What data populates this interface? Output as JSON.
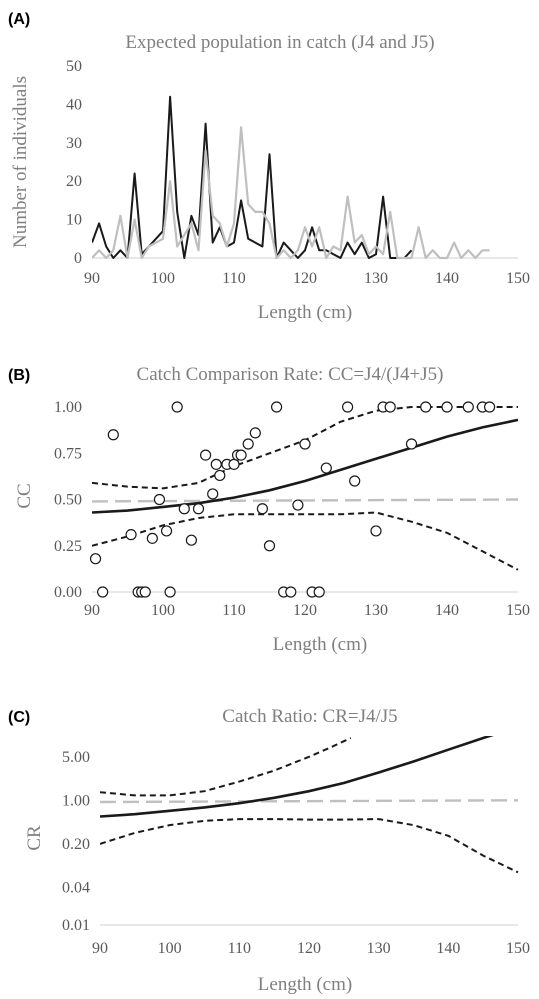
{
  "chart_data": [
    {
      "panel": "(A)",
      "type": "line",
      "title": "Expected population in catch (J4 and J5)",
      "xlabel": "Length (cm)",
      "ylabel": "Number of individuals",
      "xlim": [
        90,
        150
      ],
      "ylim": [
        0,
        50
      ],
      "x_ticks": [
        "90",
        "100",
        "110",
        "120",
        "130",
        "140",
        "150"
      ],
      "y_ticks": [
        "0",
        "10",
        "20",
        "30",
        "40",
        "50"
      ],
      "grid": false,
      "series": [
        {
          "color": "#1a1a1a",
          "x": [
            90,
            91,
            92,
            93,
            94,
            95,
            96,
            97,
            98,
            99,
            100,
            101,
            102,
            103,
            104,
            105,
            106,
            107,
            108,
            109,
            110,
            111,
            112,
            113,
            114,
            115,
            116,
            117,
            118,
            119,
            120,
            121,
            122,
            123,
            124,
            125,
            126,
            127,
            128,
            129,
            130,
            131,
            132,
            133,
            134,
            135
          ],
          "y": [
            4,
            9,
            3,
            0,
            2,
            0,
            22,
            1,
            3,
            5,
            7,
            42,
            12,
            0,
            11,
            6,
            35,
            4,
            8,
            3,
            4,
            15,
            5,
            4,
            3,
            27,
            0,
            4,
            2,
            0,
            2,
            8,
            2,
            2,
            1,
            0,
            4,
            1,
            4,
            0,
            1,
            16,
            0,
            0,
            0,
            2
          ]
        },
        {
          "color": "#bfbfbf",
          "x": [
            90,
            91,
            92,
            93,
            94,
            95,
            96,
            97,
            98,
            99,
            100,
            101,
            102,
            103,
            104,
            105,
            106,
            107,
            108,
            109,
            110,
            111,
            112,
            113,
            114,
            115,
            116,
            117,
            118,
            119,
            120,
            121,
            122,
            123,
            124,
            125,
            126,
            127,
            128,
            129,
            130,
            131,
            132,
            133,
            134,
            135,
            136,
            137,
            138,
            139,
            140,
            141,
            142,
            143,
            144,
            145,
            146
          ],
          "y": [
            0,
            2,
            0,
            2,
            11,
            0,
            10,
            0,
            3,
            4,
            5,
            20,
            3,
            6,
            9,
            2,
            28,
            11,
            9,
            3,
            9,
            34,
            14,
            12,
            12,
            9,
            0,
            2,
            0,
            2,
            8,
            3,
            8,
            0,
            3,
            2,
            16,
            4,
            6,
            1,
            3,
            1,
            12,
            0,
            0,
            0,
            8,
            0,
            2,
            0,
            0,
            4,
            0,
            2,
            0,
            2,
            2
          ]
        }
      ]
    },
    {
      "panel": "(B)",
      "type": "scatter",
      "title": "Catch Comparison Rate: CC=J4/(J4+J5)",
      "xlabel": "Length (cm)",
      "ylabel": "CC",
      "xlim": [
        90,
        150
      ],
      "ylim": [
        0,
        1
      ],
      "x_ticks": [
        "90",
        "100",
        "110",
        "120",
        "130",
        "140",
        "150"
      ],
      "y_ticks": [
        "0.00",
        "0.25",
        "0.50",
        "0.75",
        "1.00"
      ],
      "grid": false,
      "points": {
        "x": [
          90.5,
          91.5,
          93,
          95.5,
          96.5,
          97,
          97.5,
          98.5,
          99.5,
          100.5,
          101,
          102,
          103,
          104,
          105,
          106,
          107,
          107.5,
          108,
          109,
          110,
          110.5,
          111,
          112,
          113,
          114,
          115,
          116,
          117,
          118,
          119,
          120,
          121,
          122,
          123,
          126,
          127,
          130,
          131,
          132,
          135,
          137,
          140,
          143,
          145,
          146
        ],
        "y": [
          0.18,
          0.0,
          0.85,
          0.31,
          0.0,
          0.0,
          0.0,
          0.29,
          0.5,
          0.33,
          0.0,
          1.0,
          0.45,
          0.28,
          0.45,
          0.74,
          0.53,
          0.69,
          0.63,
          0.69,
          0.69,
          0.74,
          0.74,
          0.8,
          0.86,
          0.45,
          0.25,
          1.0,
          0.0,
          0.0,
          0.47,
          0.8,
          0.0,
          0.0,
          0.67,
          1.0,
          0.6,
          0.33,
          1.0,
          1.0,
          0.8,
          1.0,
          1.0,
          1.0,
          1.0,
          1.0
        ]
      },
      "lines": [
        {
          "style": "solid",
          "color": "#1a1a1a",
          "x": [
            90,
            95,
            100,
            105,
            110,
            115,
            120,
            125,
            130,
            135,
            140,
            145,
            150
          ],
          "y": [
            0.43,
            0.44,
            0.46,
            0.48,
            0.51,
            0.55,
            0.6,
            0.66,
            0.72,
            0.78,
            0.84,
            0.89,
            0.93
          ]
        },
        {
          "style": "dashed",
          "color": "#1a1a1a",
          "x": [
            90,
            95,
            100,
            105,
            110,
            115,
            120,
            125,
            130,
            135,
            140,
            145,
            150
          ],
          "y": [
            0.59,
            0.57,
            0.56,
            0.59,
            0.68,
            0.75,
            0.82,
            0.92,
            0.98,
            1.0,
            1.0,
            1.0,
            1.0
          ]
        },
        {
          "style": "dashed",
          "color": "#1a1a1a",
          "x": [
            90,
            95,
            100,
            105,
            110,
            115,
            120,
            125,
            130,
            135,
            140,
            145,
            150
          ],
          "y": [
            0.25,
            0.3,
            0.36,
            0.4,
            0.42,
            0.42,
            0.42,
            0.42,
            0.43,
            0.38,
            0.32,
            0.22,
            0.12
          ]
        },
        {
          "style": "dashed",
          "color": "#bfbfbf",
          "x": [
            90,
            150
          ],
          "y": [
            0.49,
            0.5
          ]
        }
      ]
    },
    {
      "panel": "(C)",
      "type": "line",
      "title": "Catch Ratio: CR=J4/J5",
      "xlabel": "Length (cm)",
      "ylabel": "CR",
      "xlim": [
        90,
        150
      ],
      "ylim": [
        0.01,
        10
      ],
      "yscale": "log",
      "x_ticks": [
        "90",
        "100",
        "110",
        "120",
        "130",
        "140",
        "150"
      ],
      "y_ticks": [
        "0.01",
        "0.04",
        "0.20",
        "1.00",
        "5.00"
      ],
      "y_tick_values": [
        0.01,
        0.04,
        0.2,
        1.0,
        5.0
      ],
      "grid": false,
      "lines": [
        {
          "style": "solid",
          "color": "#1a1a1a",
          "x": [
            90,
            95,
            100,
            105,
            110,
            115,
            120,
            125,
            130,
            135,
            140,
            145,
            150
          ],
          "y": [
            0.55,
            0.6,
            0.68,
            0.77,
            0.9,
            1.1,
            1.4,
            1.9,
            2.8,
            4.2,
            6.5,
            10.0,
            15.0
          ]
        },
        {
          "style": "dashed",
          "color": "#1a1a1a",
          "x": [
            90,
            95,
            100,
            105,
            110,
            115,
            120,
            123,
            126
          ],
          "y": [
            1.35,
            1.2,
            1.2,
            1.4,
            2.0,
            3.0,
            5.0,
            7.0,
            10.0
          ]
        },
        {
          "style": "dashed",
          "color": "#1a1a1a",
          "x": [
            90,
            95,
            100,
            105,
            110,
            115,
            120,
            125,
            130,
            135,
            140,
            145,
            150
          ],
          "y": [
            0.2,
            0.3,
            0.4,
            0.47,
            0.5,
            0.5,
            0.49,
            0.49,
            0.5,
            0.4,
            0.27,
            0.13,
            0.07
          ]
        },
        {
          "style": "dashed",
          "color": "#bfbfbf",
          "x": [
            90,
            150
          ],
          "y": [
            0.94,
            1.0
          ]
        }
      ]
    }
  ]
}
